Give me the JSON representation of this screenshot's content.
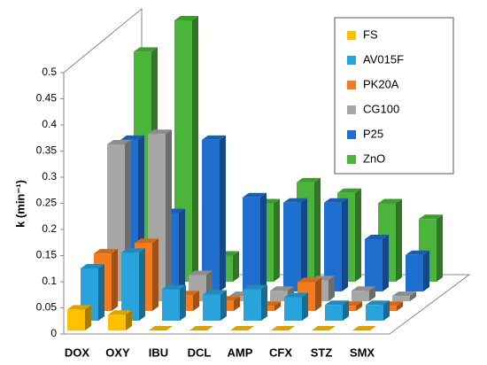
{
  "chart_data": {
    "type": "bar3d",
    "y_label": "k (min⁻¹)",
    "categories": [
      "DOX",
      "OXY",
      "IBU",
      "DCL",
      "AMP",
      "CFX",
      "STZ",
      "SMX"
    ],
    "series": [
      {
        "name": "FS",
        "color": "#ffc000",
        "values": [
          0.04,
          0.03,
          0,
          0,
          0,
          0,
          0,
          0
        ]
      },
      {
        "name": "AV015F",
        "color": "#29a3dc",
        "values": [
          0.1,
          0.13,
          0.06,
          0.05,
          0.06,
          0.045,
          0.03,
          0.03
        ]
      },
      {
        "name": "PK20A",
        "color": "#f47b20",
        "values": [
          0.11,
          0.13,
          0.03,
          0.02,
          0.01,
          0.055,
          0.01,
          0.01
        ]
      },
      {
        "name": "CG100",
        "color": "#a6a6a6",
        "values": [
          0.3,
          0.32,
          0.05,
          0.01,
          0.02,
          0.04,
          0.02,
          0.01
        ]
      },
      {
        "name": "P25",
        "color": "#1f6fd0",
        "values": [
          0.29,
          0.15,
          0.29,
          0.18,
          0.17,
          0.17,
          0.1,
          0.07
        ]
      },
      {
        "name": "ZnO",
        "color": "#4ab53a",
        "values": [
          0.44,
          0.5,
          0.05,
          0.15,
          0.19,
          0.17,
          0.15,
          0.12
        ]
      }
    ],
    "ylim": [
      0,
      0.5
    ],
    "yticks": [
      0,
      0.05,
      0.1,
      0.15,
      0.2,
      0.25,
      0.3,
      0.35,
      0.4,
      0.45,
      0.5
    ]
  }
}
